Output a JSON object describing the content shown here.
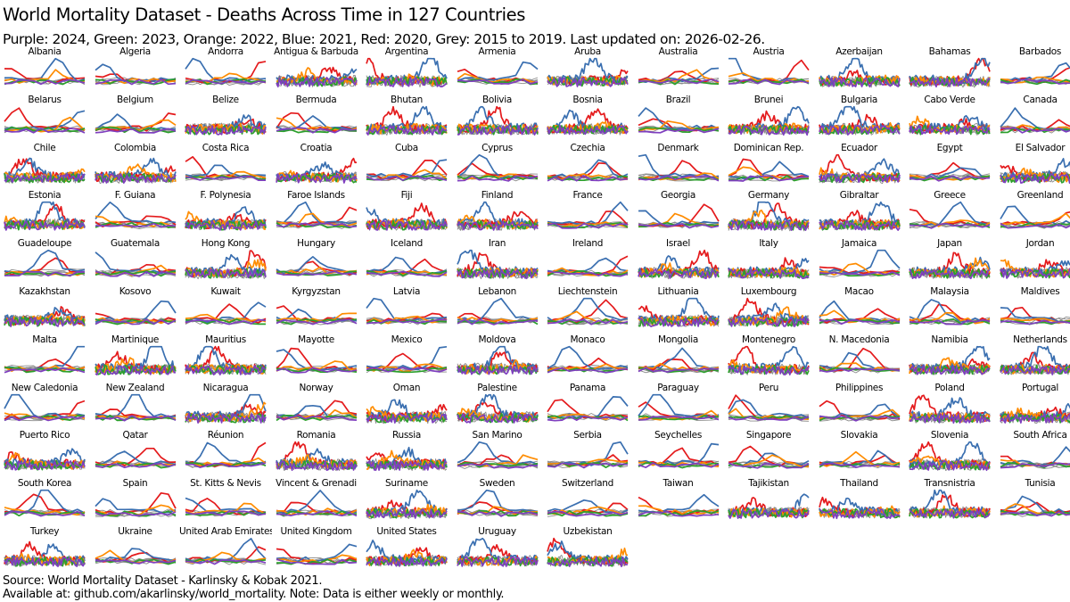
{
  "title": "World Mortality Dataset - Deaths Across Time in 127 Countries",
  "subtitle": "Purple: 2024, Green: 2023, Orange: 2022, Blue: 2021, Red: 2020, Grey: 2015 to 2019. Last updated on: 2026-02-26.",
  "footer": {
    "source": "Source: World Mortality Dataset - Karlinsky & Kobak 2021.",
    "note": "Available at: github.com/akarlinsky/world_mortality. Note: Data is either weekly or monthly."
  },
  "colors": {
    "2024": "#7f3fbf",
    "2023": "#2ca02c",
    "2022": "#ff8c00",
    "2021": "#3a6fb0",
    "2020": "#e41a1c",
    "baseline": "#8c8c8c"
  },
  "chart_data": {
    "type": "line",
    "legend": [
      "Purple: 2024",
      "Green: 2023",
      "Orange: 2022",
      "Blue: 2021",
      "Red: 2020",
      "Grey: 2015 to 2019"
    ],
    "series_years": [
      "2015-2019",
      "2020",
      "2021",
      "2022",
      "2023",
      "2024"
    ],
    "panels": [
      {
        "country": "Albania"
      },
      {
        "country": "Algeria"
      },
      {
        "country": "Andorra"
      },
      {
        "country": "Antigua & Barbuda"
      },
      {
        "country": "Argentina"
      },
      {
        "country": "Armenia"
      },
      {
        "country": "Aruba"
      },
      {
        "country": "Australia"
      },
      {
        "country": "Austria"
      },
      {
        "country": "Azerbaijan"
      },
      {
        "country": "Bahamas"
      },
      {
        "country": "Barbados"
      },
      {
        "country": "Belarus"
      },
      {
        "country": "Belgium"
      },
      {
        "country": "Belize"
      },
      {
        "country": "Bermuda"
      },
      {
        "country": "Bhutan"
      },
      {
        "country": "Bolivia"
      },
      {
        "country": "Bosnia"
      },
      {
        "country": "Brazil"
      },
      {
        "country": "Brunei"
      },
      {
        "country": "Bulgaria"
      },
      {
        "country": "Cabo Verde"
      },
      {
        "country": "Canada"
      },
      {
        "country": "Chile"
      },
      {
        "country": "Colombia"
      },
      {
        "country": "Costa Rica"
      },
      {
        "country": "Croatia"
      },
      {
        "country": "Cuba"
      },
      {
        "country": "Cyprus"
      },
      {
        "country": "Czechia"
      },
      {
        "country": "Denmark"
      },
      {
        "country": "Dominican Rep."
      },
      {
        "country": "Ecuador"
      },
      {
        "country": "Egypt"
      },
      {
        "country": "El Salvador"
      },
      {
        "country": "Estonia"
      },
      {
        "country": "F. Guiana"
      },
      {
        "country": "F. Polynesia"
      },
      {
        "country": "Faroe Islands"
      },
      {
        "country": "Fiji"
      },
      {
        "country": "Finland"
      },
      {
        "country": "France"
      },
      {
        "country": "Georgia"
      },
      {
        "country": "Germany"
      },
      {
        "country": "Gibraltar"
      },
      {
        "country": "Greece"
      },
      {
        "country": "Greenland"
      },
      {
        "country": "Guadeloupe"
      },
      {
        "country": "Guatemala"
      },
      {
        "country": "Hong Kong"
      },
      {
        "country": "Hungary"
      },
      {
        "country": "Iceland"
      },
      {
        "country": "Iran"
      },
      {
        "country": "Ireland"
      },
      {
        "country": "Israel"
      },
      {
        "country": "Italy"
      },
      {
        "country": "Jamaica"
      },
      {
        "country": "Japan"
      },
      {
        "country": "Jordan"
      },
      {
        "country": "Kazakhstan"
      },
      {
        "country": "Kosovo"
      },
      {
        "country": "Kuwait"
      },
      {
        "country": "Kyrgyzstan"
      },
      {
        "country": "Latvia"
      },
      {
        "country": "Lebanon"
      },
      {
        "country": "Liechtenstein"
      },
      {
        "country": "Lithuania"
      },
      {
        "country": "Luxembourg"
      },
      {
        "country": "Macao"
      },
      {
        "country": "Malaysia"
      },
      {
        "country": "Maldives"
      },
      {
        "country": "Malta"
      },
      {
        "country": "Martinique"
      },
      {
        "country": "Mauritius"
      },
      {
        "country": "Mayotte"
      },
      {
        "country": "Mexico"
      },
      {
        "country": "Moldova"
      },
      {
        "country": "Monaco"
      },
      {
        "country": "Mongolia"
      },
      {
        "country": "Montenegro"
      },
      {
        "country": "N. Macedonia"
      },
      {
        "country": "Namibia"
      },
      {
        "country": "Netherlands"
      },
      {
        "country": "New Caledonia"
      },
      {
        "country": "New Zealand"
      },
      {
        "country": "Nicaragua"
      },
      {
        "country": "Norway"
      },
      {
        "country": "Oman"
      },
      {
        "country": "Palestine"
      },
      {
        "country": "Panama"
      },
      {
        "country": "Paraguay"
      },
      {
        "country": "Peru"
      },
      {
        "country": "Philippines"
      },
      {
        "country": "Poland"
      },
      {
        "country": "Portugal"
      },
      {
        "country": "Puerto Rico"
      },
      {
        "country": "Qatar"
      },
      {
        "country": "Réunion"
      },
      {
        "country": "Romania"
      },
      {
        "country": "Russia"
      },
      {
        "country": "San Marino"
      },
      {
        "country": "Serbia"
      },
      {
        "country": "Seychelles"
      },
      {
        "country": "Singapore"
      },
      {
        "country": "Slovakia"
      },
      {
        "country": "Slovenia"
      },
      {
        "country": "South Africa"
      },
      {
        "country": "South Korea"
      },
      {
        "country": "Spain"
      },
      {
        "country": "St. Kitts & Nevis"
      },
      {
        "country": "Vincent & Grenadi"
      },
      {
        "country": "Suriname"
      },
      {
        "country": "Sweden"
      },
      {
        "country": "Switzerland"
      },
      {
        "country": "Taiwan"
      },
      {
        "country": "Tajikistan"
      },
      {
        "country": "Thailand"
      },
      {
        "country": "Transnistria"
      },
      {
        "country": "Tunisia"
      },
      {
        "country": "Turkey"
      },
      {
        "country": "Ukraine"
      },
      {
        "country": "United Arab Emirates"
      },
      {
        "country": "United Kingdom"
      },
      {
        "country": "United States"
      },
      {
        "country": "Uruguay"
      },
      {
        "country": "Uzbekistan"
      }
    ]
  }
}
